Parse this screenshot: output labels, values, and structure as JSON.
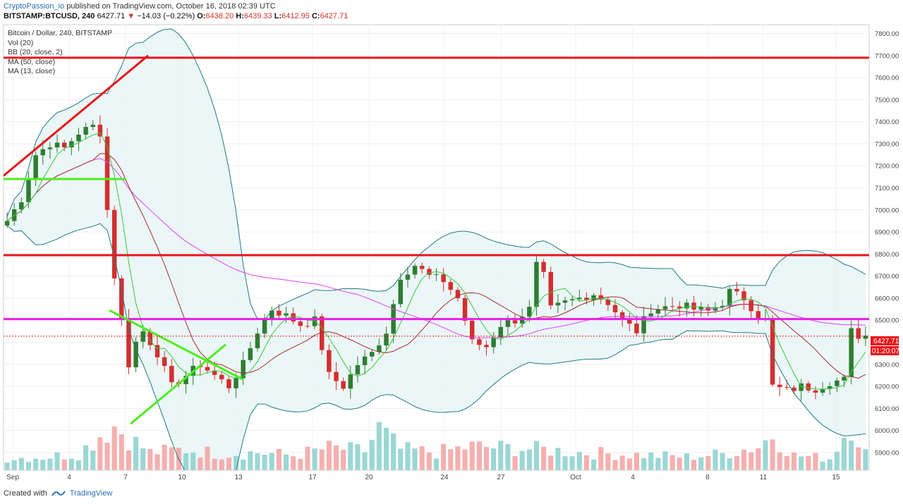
{
  "header": {
    "author": "CryptoPassion_io",
    "published_text": "published on TradingView.com, October 16, 2018 02:39 UTC",
    "symbol": "BITSTAMP:BTCUSD, 240",
    "last": "6427.71",
    "change": "−14.03 (−0.22%)",
    "o_label": "O:",
    "o": "6438.20",
    "h_label": "H:",
    "h": "6439.33",
    "l_label": "L:",
    "l": "6412.95",
    "c_label": "C:",
    "c": "6427.71"
  },
  "legend": {
    "title": "Bitcoin / Dollar, 240, BITSTAMP",
    "vol": "Vol (20)",
    "bb": "BB (20, close, 2)",
    "ma50": "MA (50, close)",
    "ma13": "MA (13, close)"
  },
  "price_tag": {
    "price": "6427.71",
    "countdown": "01:20:07"
  },
  "footer": {
    "created_with": "Created with",
    "brand": "TradingView"
  },
  "colors": {
    "up": "#26a69a",
    "down": "#ef5350",
    "candle_up": "#2e7d32",
    "candle_down": "#d32f2f",
    "bb": "#1f7a80",
    "ma50": "#e040fb",
    "ma13": "#a52a2a",
    "trend_red": "#e8161b",
    "trend_green": "#4cef1b",
    "support_magenta": "#e91ee8"
  },
  "chart_data": {
    "type": "candlestick",
    "title": "Bitcoin / Dollar, 240, BITSTAMP",
    "y_axis": {
      "ticks": [
        5900,
        6000,
        6100,
        6200,
        6300,
        6400,
        6500,
        6600,
        6700,
        6800,
        6900,
        7000,
        7100,
        7200,
        7300,
        7400,
        7500,
        7600,
        7700,
        7800
      ],
      "range": [
        5820,
        7840
      ]
    },
    "x_ticks": [
      "Sep",
      "4",
      "7",
      "10",
      "13",
      "17",
      "20",
      "24",
      "27",
      "Oct",
      "4",
      "8",
      "11",
      "15"
    ],
    "price_path": [
      [
        0,
        6950
      ],
      [
        2,
        7050
      ],
      [
        4,
        7250
      ],
      [
        6,
        7300
      ],
      [
        8,
        7280
      ],
      [
        10,
        7350
      ],
      [
        12,
        7380
      ],
      [
        13,
        7350
      ],
      [
        14,
        7000
      ],
      [
        15,
        6700
      ],
      [
        16,
        6500
      ],
      [
        17,
        6300
      ],
      [
        18,
        6400
      ],
      [
        19,
        6450
      ],
      [
        21,
        6350
      ],
      [
        23,
        6200
      ],
      [
        25,
        6250
      ],
      [
        27,
        6300
      ],
      [
        29,
        6250
      ],
      [
        31,
        6200
      ],
      [
        33,
        6300
      ],
      [
        35,
        6450
      ],
      [
        37,
        6550
      ],
      [
        39,
        6520
      ],
      [
        41,
        6480
      ],
      [
        43,
        6500
      ],
      [
        45,
        6250
      ],
      [
        47,
        6200
      ],
      [
        49,
        6300
      ],
      [
        51,
        6350
      ],
      [
        53,
        6450
      ],
      [
        55,
        6700
      ],
      [
        57,
        6750
      ],
      [
        59,
        6700
      ],
      [
        61,
        6680
      ],
      [
        63,
        6600
      ],
      [
        65,
        6400
      ],
      [
        67,
        6380
      ],
      [
        69,
        6480
      ],
      [
        71,
        6500
      ],
      [
        73,
        6550
      ],
      [
        74,
        6750
      ],
      [
        75,
        6700
      ],
      [
        76,
        6550
      ],
      [
        78,
        6580
      ],
      [
        80,
        6600
      ],
      [
        82,
        6620
      ],
      [
        84,
        6580
      ],
      [
        86,
        6500
      ],
      [
        88,
        6450
      ],
      [
        90,
        6550
      ],
      [
        92,
        6560
      ],
      [
        94,
        6570
      ],
      [
        96,
        6550
      ],
      [
        98,
        6540
      ],
      [
        100,
        6580
      ],
      [
        101,
        6630
      ],
      [
        103,
        6600
      ],
      [
        105,
        6520
      ],
      [
        106,
        6500
      ],
      [
        107,
        6200
      ],
      [
        109,
        6180
      ],
      [
        111,
        6200
      ],
      [
        113,
        6190
      ],
      [
        115,
        6220
      ],
      [
        117,
        6230
      ],
      [
        118,
        6450
      ],
      [
        119,
        6430
      ]
    ],
    "volume_path": [
      [
        0,
        40
      ],
      [
        5,
        45
      ],
      [
        10,
        55
      ],
      [
        13,
        120
      ],
      [
        15,
        150
      ],
      [
        17,
        110
      ],
      [
        20,
        60
      ],
      [
        25,
        70
      ],
      [
        30,
        55
      ],
      [
        35,
        60
      ],
      [
        40,
        50
      ],
      [
        45,
        75
      ],
      [
        50,
        65
      ],
      [
        52,
        140
      ],
      [
        55,
        70
      ],
      [
        60,
        60
      ],
      [
        65,
        80
      ],
      [
        70,
        75
      ],
      [
        75,
        70
      ],
      [
        80,
        60
      ],
      [
        85,
        55
      ],
      [
        90,
        50
      ],
      [
        95,
        45
      ],
      [
        100,
        55
      ],
      [
        105,
        80
      ],
      [
        107,
        120
      ],
      [
        110,
        50
      ],
      [
        115,
        40
      ],
      [
        118,
        160
      ],
      [
        120,
        60
      ]
    ],
    "horizontal_lines": [
      {
        "price": 7690,
        "color": "red"
      },
      {
        "price": 6795,
        "color": "red"
      },
      {
        "price": 6505,
        "color": "magenta"
      }
    ],
    "last_price": 6427.71
  }
}
